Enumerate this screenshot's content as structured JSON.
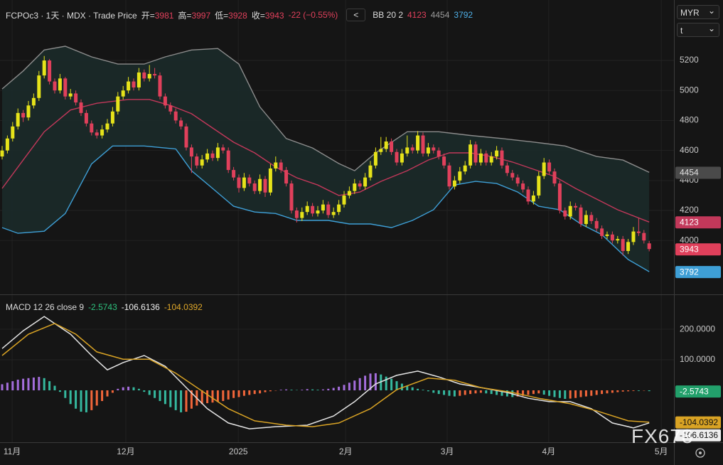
{
  "ui": {
    "currency": "MYR",
    "timezone": "t",
    "watermark": "FX678",
    "back": "<"
  },
  "chart_data": [
    {
      "type": "candlestick",
      "title": "FCPOc3 · 1天 · MDX · Trade Price",
      "ohlc_labels": [
        "开=",
        "高=",
        "低=",
        "收="
      ],
      "change_label": "-22 (−0.55%)",
      "indicator": "BB 20 2",
      "up_color": "#e6e31a",
      "down_color": "#e0405b",
      "band_fill": "#1b2a29",
      "ylim": [
        3641,
        5603
      ],
      "yticks": [
        4000,
        4200,
        4400,
        4600,
        4800,
        5000,
        5200
      ],
      "grid": true,
      "candles": [
        [
          4560,
          4630,
          4540,
          4600
        ],
        [
          4600,
          4700,
          4580,
          4680
        ],
        [
          4680,
          4790,
          4660,
          4760
        ],
        [
          4760,
          4880,
          4740,
          4850
        ],
        [
          4850,
          4870,
          4790,
          4820
        ],
        [
          4820,
          4930,
          4800,
          4900
        ],
        [
          4900,
          4980,
          4880,
          4950
        ],
        [
          4950,
          5130,
          4930,
          5100
        ],
        [
          5100,
          5230,
          5080,
          5200
        ],
        [
          5200,
          5210,
          5040,
          5060
        ],
        [
          5060,
          5080,
          4980,
          5000
        ],
        [
          5000,
          5110,
          4980,
          5080
        ],
        [
          5080,
          5090,
          4940,
          4960
        ],
        [
          4960,
          5010,
          4940,
          4980
        ],
        [
          4980,
          5000,
          4900,
          4920
        ],
        [
          4920,
          4940,
          4830,
          4850
        ],
        [
          4850,
          4870,
          4760,
          4780
        ],
        [
          4780,
          4800,
          4700,
          4720
        ],
        [
          4720,
          4740,
          4680,
          4700
        ],
        [
          4700,
          4770,
          4680,
          4740
        ],
        [
          4740,
          4810,
          4720,
          4780
        ],
        [
          4780,
          4890,
          4760,
          4860
        ],
        [
          4860,
          4990,
          4840,
          4960
        ],
        [
          4960,
          5030,
          4940,
          5000
        ],
        [
          5000,
          5090,
          4980,
          5060
        ],
        [
          5060,
          5080,
          5000,
          5020
        ],
        [
          5020,
          5150,
          5000,
          5120
        ],
        [
          5120,
          5140,
          5060,
          5080
        ],
        [
          5080,
          5170,
          5060,
          5110
        ],
        [
          5110,
          5150,
          5080,
          5100
        ],
        [
          5100,
          5120,
          4940,
          4960
        ],
        [
          4960,
          4980,
          4880,
          4900
        ],
        [
          4900,
          4920,
          4840,
          4860
        ],
        [
          4860,
          4880,
          4780,
          4800
        ],
        [
          4800,
          4820,
          4740,
          4760
        ],
        [
          4760,
          4780,
          4600,
          4620
        ],
        [
          4620,
          4640,
          4450,
          4560
        ],
        [
          4560,
          4580,
          4480,
          4500
        ],
        [
          4500,
          4570,
          4480,
          4540
        ],
        [
          4540,
          4610,
          4520,
          4580
        ],
        [
          4580,
          4600,
          4530,
          4550
        ],
        [
          4550,
          4650,
          4530,
          4620
        ],
        [
          4620,
          4640,
          4580,
          4600
        ],
        [
          4600,
          4620,
          4450,
          4470
        ],
        [
          4470,
          4490,
          4400,
          4420
        ],
        [
          4420,
          4440,
          4320,
          4350
        ],
        [
          4350,
          4450,
          4330,
          4420
        ],
        [
          4420,
          4440,
          4360,
          4380
        ],
        [
          4380,
          4400,
          4310,
          4330
        ],
        [
          4330,
          4440,
          4310,
          4410
        ],
        [
          4410,
          4430,
          4290,
          4320
        ],
        [
          4320,
          4510,
          4300,
          4480
        ],
        [
          4480,
          4560,
          4460,
          4520
        ],
        [
          4520,
          4540,
          4450,
          4470
        ],
        [
          4470,
          4490,
          4360,
          4380
        ],
        [
          4380,
          4400,
          4180,
          4200
        ],
        [
          4200,
          4220,
          4120,
          4150
        ],
        [
          4150,
          4220,
          4130,
          4190
        ],
        [
          4190,
          4260,
          4170,
          4230
        ],
        [
          4230,
          4250,
          4160,
          4180
        ],
        [
          4180,
          4230,
          4160,
          4200
        ],
        [
          4200,
          4270,
          4180,
          4240
        ],
        [
          4240,
          4260,
          4150,
          4170
        ],
        [
          4170,
          4220,
          4150,
          4190
        ],
        [
          4190,
          4270,
          4170,
          4240
        ],
        [
          4240,
          4330,
          4220,
          4300
        ],
        [
          4300,
          4360,
          4280,
          4330
        ],
        [
          4330,
          4410,
          4310,
          4380
        ],
        [
          4380,
          4400,
          4340,
          4360
        ],
        [
          4360,
          4450,
          4340,
          4420
        ],
        [
          4420,
          4530,
          4400,
          4500
        ],
        [
          4500,
          4620,
          4480,
          4590
        ],
        [
          4590,
          4690,
          4570,
          4610
        ],
        [
          4610,
          4690,
          4590,
          4660
        ],
        [
          4660,
          4680,
          4570,
          4590
        ],
        [
          4590,
          4610,
          4500,
          4520
        ],
        [
          4520,
          4610,
          4500,
          4580
        ],
        [
          4580,
          4700,
          4560,
          4620
        ],
        [
          4620,
          4640,
          4580,
          4600
        ],
        [
          4600,
          4730,
          4580,
          4700
        ],
        [
          4700,
          4720,
          4560,
          4580
        ],
        [
          4580,
          4650,
          4560,
          4620
        ],
        [
          4620,
          4640,
          4580,
          4600
        ],
        [
          4600,
          4620,
          4540,
          4560
        ],
        [
          4560,
          4580,
          4480,
          4500
        ],
        [
          4500,
          4520,
          4340,
          4360
        ],
        [
          4360,
          4430,
          4340,
          4400
        ],
        [
          4400,
          4490,
          4380,
          4460
        ],
        [
          4460,
          4530,
          4440,
          4500
        ],
        [
          4500,
          4670,
          4480,
          4640
        ],
        [
          4640,
          4660,
          4500,
          4520
        ],
        [
          4520,
          4610,
          4500,
          4580
        ],
        [
          4580,
          4600,
          4500,
          4520
        ],
        [
          4520,
          4590,
          4500,
          4560
        ],
        [
          4560,
          4630,
          4540,
          4600
        ],
        [
          4600,
          4620,
          4480,
          4500
        ],
        [
          4500,
          4520,
          4430,
          4450
        ],
        [
          4450,
          4470,
          4400,
          4420
        ],
        [
          4420,
          4440,
          4360,
          4380
        ],
        [
          4380,
          4400,
          4320,
          4340
        ],
        [
          4340,
          4360,
          4240,
          4260
        ],
        [
          4260,
          4330,
          4240,
          4300
        ],
        [
          4300,
          4460,
          4280,
          4430
        ],
        [
          4430,
          4550,
          4410,
          4520
        ],
        [
          4520,
          4540,
          4440,
          4460
        ],
        [
          4460,
          4480,
          4360,
          4380
        ],
        [
          4380,
          4400,
          4180,
          4200
        ],
        [
          4200,
          4220,
          4140,
          4160
        ],
        [
          4160,
          4260,
          4140,
          4230
        ],
        [
          4230,
          4250,
          4200,
          4220
        ],
        [
          4220,
          4240,
          4090,
          4110
        ],
        [
          4110,
          4200,
          4090,
          4170
        ],
        [
          4170,
          4190,
          4110,
          4130
        ],
        [
          4130,
          4150,
          4060,
          4080
        ],
        [
          4080,
          4100,
          4010,
          4030
        ],
        [
          4030,
          4060,
          4010,
          4040
        ],
        [
          4040,
          4060,
          3980,
          4000
        ],
        [
          4000,
          4030,
          3980,
          4010
        ],
        [
          4010,
          4030,
          3900,
          3930
        ],
        [
          3930,
          4010,
          3910,
          3990
        ],
        [
          3990,
          4090,
          3970,
          4060
        ],
        [
          4060,
          4150,
          4030,
          4050
        ],
        [
          4050,
          4070,
          3980,
          4000
        ],
        [
          3981,
          3997,
          3928,
          3943
        ]
      ],
      "series": [
        {
          "color": "#8c8c8c",
          "x": [
            0,
            4,
            8,
            12,
            17,
            22,
            27,
            31,
            36,
            41,
            45,
            49,
            54,
            59,
            64,
            67,
            71,
            77,
            83,
            89,
            95,
            101,
            107,
            113,
            118,
            123
          ],
          "values": [
            5010,
            5130,
            5270,
            5295,
            5224,
            5176,
            5176,
            5224,
            5270,
            5280,
            5176,
            4890,
            4680,
            4617,
            4513,
            4465,
            4584,
            4725,
            4725,
            4700,
            4680,
            4656,
            4630,
            4560,
            4536,
            4454
          ]
        },
        {
          "color": "#c2385a",
          "x": [
            0,
            4,
            8,
            13,
            18,
            24,
            28,
            32,
            36,
            40,
            44,
            48,
            52,
            56,
            60,
            64,
            68,
            72,
            77,
            81,
            85,
            89,
            93,
            97,
            101,
            105,
            109,
            113,
            117,
            123
          ],
          "values": [
            4347,
            4536,
            4725,
            4870,
            4915,
            4940,
            4940,
            4900,
            4845,
            4750,
            4655,
            4584,
            4490,
            4418,
            4370,
            4300,
            4323,
            4394,
            4465,
            4536,
            4584,
            4584,
            4560,
            4523,
            4475,
            4427,
            4347,
            4276,
            4205,
            4123
          ]
        },
        {
          "color": "#3e9fd6",
          "x": [
            0,
            3,
            8,
            12,
            17,
            21,
            27,
            33,
            36,
            40,
            44,
            48,
            52,
            56,
            62,
            66,
            70,
            74,
            78,
            82,
            86,
            90,
            94,
            98,
            102,
            106,
            110,
            114,
            119,
            123
          ],
          "values": [
            4086,
            4048,
            4062,
            4180,
            4510,
            4630,
            4630,
            4610,
            4465,
            4347,
            4228,
            4190,
            4180,
            4134,
            4134,
            4110,
            4110,
            4086,
            4134,
            4205,
            4370,
            4394,
            4380,
            4323,
            4228,
            4205,
            4110,
            4039,
            3873,
            3792
          ]
        }
      ]
    },
    {
      "type": "macd",
      "title": "MACD 12 26 close 9",
      "ylim": [
        -170,
        312
      ],
      "yticks": [
        {
          "value": 100,
          "label": "100.0000"
        },
        {
          "value": 200,
          "label": "200.0000"
        }
      ],
      "grid": true,
      "xticks": [
        {
          "value": 1.9,
          "label": "11月"
        },
        {
          "value": 23.5,
          "label": "12月"
        },
        {
          "value": 44.9,
          "label": "2025"
        },
        {
          "value": 65.3,
          "label": "2月"
        },
        {
          "value": 84.6,
          "label": "3月"
        },
        {
          "value": 103.9,
          "label": "4月"
        },
        {
          "value": 125.3,
          "label": "5月"
        }
      ],
      "histogram": {
        "colors": {
          "above_rising": "#a46ddb",
          "above_falling": "#35b89e",
          "below_falling": "#35b89e",
          "below_rising": "#f2663a"
        },
        "badge_color": "#22a06b",
        "values": [
          20,
          25,
          30,
          35,
          38,
          40,
          42,
          44,
          40,
          30,
          15,
          -5,
          -25,
          -45,
          -60,
          -70,
          -72,
          -65,
          -50,
          -35,
          -20,
          -8,
          5,
          10,
          12,
          10,
          5,
          -5,
          -15,
          -25,
          -35,
          -45,
          -55,
          -65,
          -72,
          -70,
          -60,
          -50,
          -45,
          -42,
          -40,
          -38,
          -35,
          -30,
          -25,
          -22,
          -18,
          -15,
          -12,
          -10,
          -6,
          -3,
          -1,
          2,
          3,
          2,
          1,
          2,
          4,
          3,
          2,
          3,
          5,
          8,
          12,
          18,
          25,
          32,
          40,
          48,
          55,
          56,
          52,
          45,
          38,
          30,
          22,
          15,
          10,
          5,
          2,
          -3,
          -8,
          -12,
          -15,
          -18,
          -20,
          -18,
          -15,
          -12,
          -10,
          -8,
          -10,
          -12,
          -15,
          -18,
          -20,
          -22,
          -20,
          -18,
          -15,
          -12,
          -10,
          -14,
          -18,
          -22,
          -25,
          -28,
          -27,
          -25,
          -22,
          -20,
          -18,
          -15,
          -12,
          -10,
          -8,
          -6,
          -4,
          -3,
          -2,
          -2,
          -1,
          -2.5743
        ]
      },
      "series": [
        {
          "color": "#e4e4e4",
          "x": [
            0,
            4,
            8,
            13,
            17,
            20,
            23,
            27,
            31,
            35,
            39,
            43,
            47,
            52,
            58,
            63,
            67,
            71,
            75,
            79,
            83,
            87,
            91,
            96,
            100,
            104,
            108,
            112,
            116,
            120,
            123
          ],
          "values": [
            137,
            195,
            242,
            184,
            114,
            67,
            91,
            114,
            79,
            9,
            -60,
            -107,
            -126,
            -119,
            -114,
            -84,
            -37,
            21,
            49,
            63,
            44,
            21,
            9,
            -7,
            -26,
            -37,
            -37,
            -60,
            -107,
            -123,
            -106.6136
          ]
        },
        {
          "color": "#d9a324",
          "x": [
            0,
            5,
            10,
            14,
            18,
            23,
            28,
            33,
            39,
            43,
            48,
            54,
            59,
            64,
            70,
            75,
            81,
            86,
            91,
            97,
            102,
            108,
            113,
            119,
            123
          ],
          "values": [
            114,
            184,
            219,
            184,
            126,
            102,
            102,
            56,
            -14,
            -60,
            -100,
            -114,
            -119,
            -107,
            -60,
            2,
            40,
            33,
            9,
            -7,
            -26,
            -44,
            -67,
            -100,
            -104.0392
          ]
        }
      ]
    }
  ]
}
